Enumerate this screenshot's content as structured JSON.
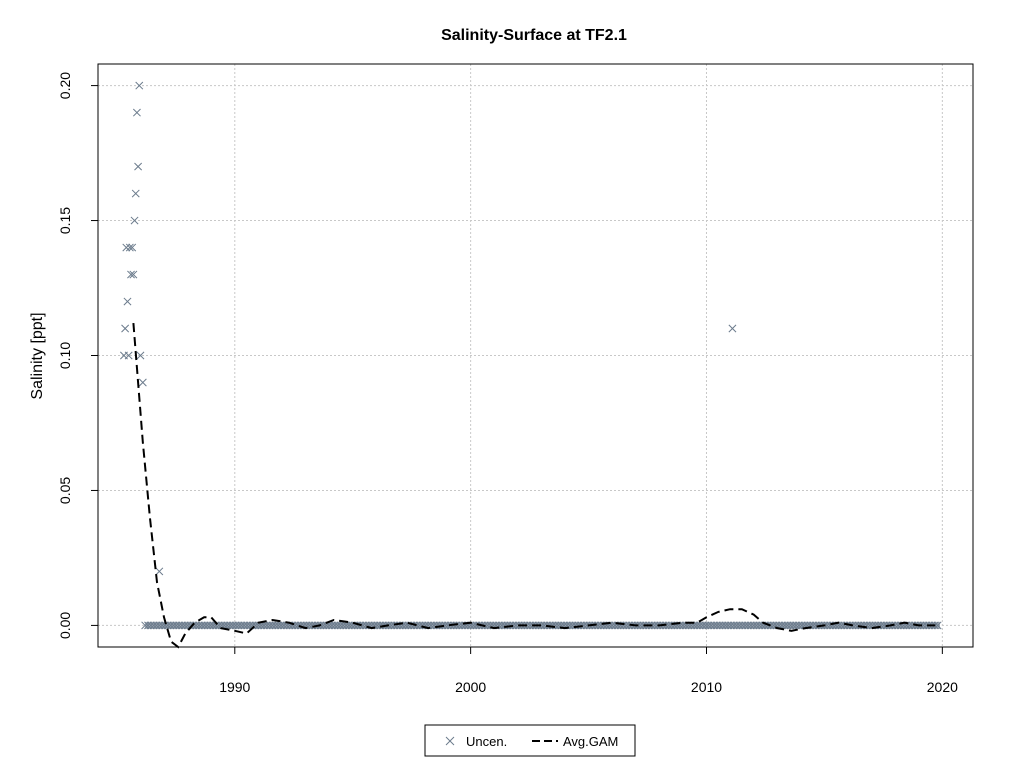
{
  "chart_data": {
    "type": "scatter",
    "title": "Salinity-Surface at TF2.1",
    "xlabel": "",
    "ylabel": "Salinity [ppt]",
    "xlim": [
      1984.2,
      2021.3
    ],
    "ylim": [
      -0.008,
      0.208
    ],
    "x_ticks": [
      1990,
      2000,
      2010,
      2020
    ],
    "y_ticks": [
      0.0,
      0.05,
      0.1,
      0.15,
      0.2
    ],
    "x_tick_labels": [
      "1990",
      "2000",
      "2010",
      "2020"
    ],
    "y_tick_labels": [
      "0.00",
      "0.05",
      "0.10",
      "0.15",
      "0.20"
    ],
    "grid": true,
    "legend_position": "bottom-center",
    "colors": {
      "points": "#6b7b8c",
      "gam": "#000000",
      "grid": "#c8c8c8"
    },
    "series": [
      {
        "name": "Uncen.",
        "style": "x-markers",
        "points": [
          [
            1985.3,
            0.1
          ],
          [
            1985.35,
            0.11
          ],
          [
            1985.4,
            0.14
          ],
          [
            1985.45,
            0.12
          ],
          [
            1985.5,
            0.1
          ],
          [
            1985.55,
            0.14
          ],
          [
            1985.6,
            0.13
          ],
          [
            1985.65,
            0.14
          ],
          [
            1985.7,
            0.13
          ],
          [
            1985.75,
            0.15
          ],
          [
            1985.8,
            0.16
          ],
          [
            1985.85,
            0.19
          ],
          [
            1985.9,
            0.17
          ],
          [
            1985.95,
            0.2
          ],
          [
            1986.0,
            0.1
          ],
          [
            1986.1,
            0.09
          ],
          [
            1986.8,
            0.02
          ],
          [
            2011.1,
            0.11
          ]
        ],
        "zero_band": {
          "x_from": 1986.2,
          "x_to": 2019.9,
          "y": 0.0
        }
      },
      {
        "name": "Avg.GAM",
        "style": "dashed-line",
        "points": [
          [
            1985.7,
            0.112
          ],
          [
            1985.9,
            0.09
          ],
          [
            1986.1,
            0.068
          ],
          [
            1986.4,
            0.04
          ],
          [
            1986.7,
            0.016
          ],
          [
            1987.0,
            0.003
          ],
          [
            1987.3,
            -0.006
          ],
          [
            1987.6,
            -0.008
          ],
          [
            1987.9,
            -0.003
          ],
          [
            1988.3,
            0.001
          ],
          [
            1988.7,
            0.003
          ],
          [
            1989.0,
            0.003
          ],
          [
            1989.4,
            -0.001
          ],
          [
            1990.0,
            -0.002
          ],
          [
            1990.5,
            -0.003
          ],
          [
            1991.0,
            0.001
          ],
          [
            1991.6,
            0.002
          ],
          [
            1992.3,
            0.001
          ],
          [
            1993.0,
            -0.001
          ],
          [
            1993.6,
            0.0
          ],
          [
            1994.2,
            0.002
          ],
          [
            1995.0,
            0.001
          ],
          [
            1995.8,
            -0.001
          ],
          [
            1996.5,
            0.0
          ],
          [
            1997.3,
            0.001
          ],
          [
            1998.2,
            -0.001
          ],
          [
            1999.0,
            0.0
          ],
          [
            2000.0,
            0.001
          ],
          [
            2001.0,
            -0.001
          ],
          [
            2002.0,
            0.0
          ],
          [
            2003.0,
            0.0
          ],
          [
            2004.0,
            -0.001
          ],
          [
            2005.0,
            0.0
          ],
          [
            2006.0,
            0.001
          ],
          [
            2007.0,
            0.0
          ],
          [
            2008.0,
            0.0
          ],
          [
            2009.0,
            0.001
          ],
          [
            2009.6,
            0.001
          ],
          [
            2010.0,
            0.003
          ],
          [
            2010.5,
            0.005
          ],
          [
            2011.0,
            0.006
          ],
          [
            2011.5,
            0.006
          ],
          [
            2012.0,
            0.004
          ],
          [
            2012.4,
            0.001
          ],
          [
            2013.0,
            -0.001
          ],
          [
            2013.6,
            -0.002
          ],
          [
            2014.2,
            -0.001
          ],
          [
            2015.0,
            0.0
          ],
          [
            2015.6,
            0.001
          ],
          [
            2016.2,
            0.0
          ],
          [
            2017.0,
            -0.001
          ],
          [
            2017.8,
            0.0
          ],
          [
            2018.4,
            0.001
          ],
          [
            2019.0,
            0.0
          ],
          [
            2019.7,
            0.0
          ]
        ]
      }
    ]
  }
}
